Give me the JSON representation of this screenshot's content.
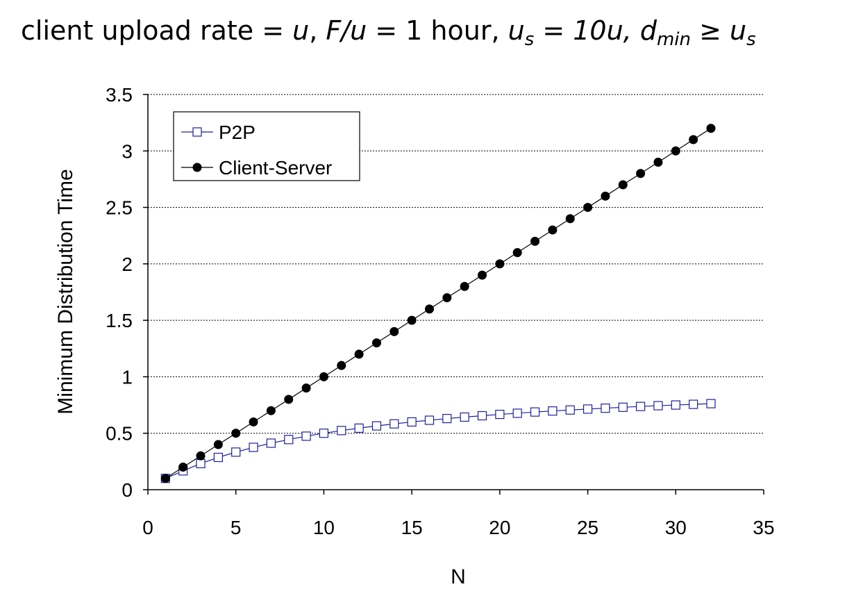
{
  "title": {
    "prefix": "client upload rate = ",
    "u1": "u",
    "sep1": ",  ",
    "fu": "F/u",
    "mid1": " = 1 hour,  ",
    "us_u": "u",
    "us_sub": "s",
    "mid2": " = 10u,  ",
    "dmin_d": "d",
    "dmin_sub": "min",
    "mid3": " ≥ ",
    "us2_u": "u",
    "us2_sub": "s"
  },
  "colors": {
    "p2p": "#1f1f9e",
    "client_server": "#000000",
    "grid": "#000000"
  },
  "chart_data": {
    "type": "line",
    "xlabel": "N",
    "ylabel": "Minimum Distribution Time",
    "xlim": [
      0,
      35
    ],
    "ylim": [
      0,
      3.5
    ],
    "x_ticks": [
      "0",
      "5",
      "10",
      "15",
      "20",
      "25",
      "30",
      "35"
    ],
    "y_ticks": [
      "0",
      "0.5",
      "1",
      "1.5",
      "2",
      "2.5",
      "3",
      "3.5"
    ],
    "grid": "horizontal-dotted",
    "legend_position": "top-left",
    "x": [
      1,
      2,
      3,
      4,
      5,
      6,
      7,
      8,
      9,
      10,
      11,
      12,
      13,
      14,
      15,
      16,
      17,
      18,
      19,
      20,
      21,
      22,
      23,
      24,
      25,
      26,
      27,
      28,
      29,
      30,
      31,
      32
    ],
    "series": [
      {
        "name": "P2P",
        "marker": "open-square",
        "values": [
          0.1,
          0.167,
          0.231,
          0.286,
          0.333,
          0.375,
          0.412,
          0.444,
          0.474,
          0.5,
          0.524,
          0.545,
          0.565,
          0.583,
          0.6,
          0.615,
          0.63,
          0.643,
          0.655,
          0.667,
          0.677,
          0.688,
          0.697,
          0.706,
          0.714,
          0.722,
          0.73,
          0.737,
          0.744,
          0.75,
          0.756,
          0.762
        ]
      },
      {
        "name": "Client-Server",
        "marker": "filled-circle",
        "values": [
          0.1,
          0.2,
          0.3,
          0.4,
          0.5,
          0.6,
          0.7,
          0.8,
          0.9,
          1.0,
          1.1,
          1.2,
          1.3,
          1.4,
          1.5,
          1.6,
          1.7,
          1.8,
          1.9,
          2.0,
          2.1,
          2.2,
          2.3,
          2.4,
          2.5,
          2.6,
          2.7,
          2.8,
          2.9,
          3.0,
          3.1,
          3.2
        ]
      }
    ]
  }
}
